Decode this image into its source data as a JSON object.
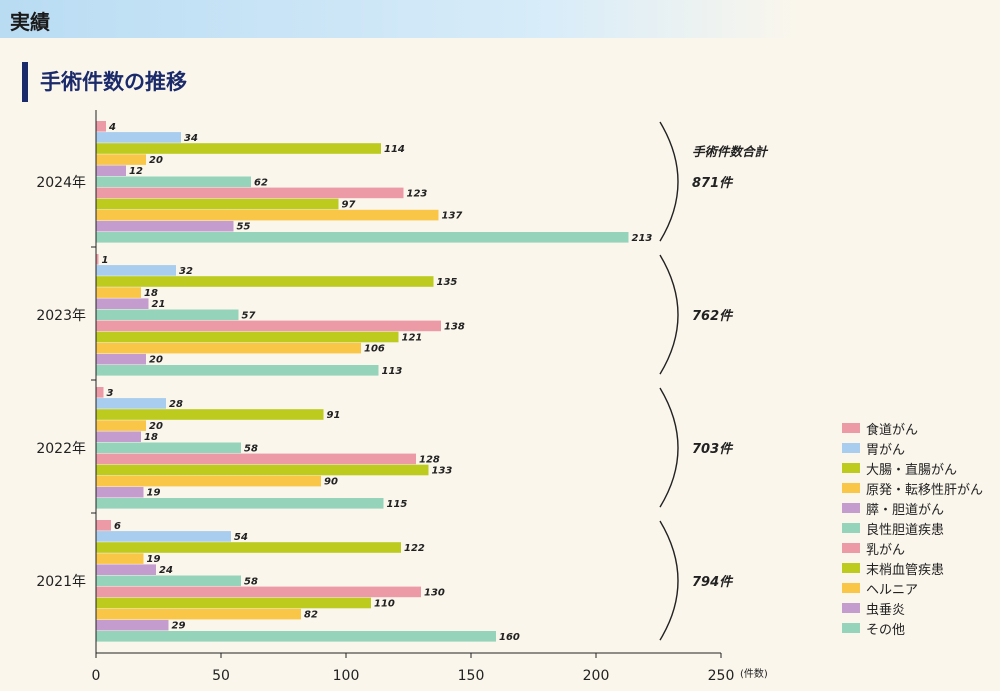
{
  "header": {
    "band_title": "実績",
    "section_title": "手術件数の推移"
  },
  "chart_data": {
    "type": "bar",
    "orientation": "horizontal",
    "title": "手術件数の推移",
    "x_unit_label": "(件数)",
    "xlim": [
      0,
      250
    ],
    "x_ticks": [
      0,
      50,
      100,
      150,
      200,
      250
    ],
    "grid": false,
    "legend_position": "right-bottom",
    "categories": [
      "食道がん",
      "胃がん",
      "大腸・直腸がん",
      "原発・転移性肝がん",
      "膵・胆道がん",
      "良性胆道疾患",
      "乳がん",
      "末梢血管疾患",
      "ヘルニア",
      "虫垂炎",
      "その他"
    ],
    "colors": [
      "#eb9aa6",
      "#a9cdee",
      "#bccb1e",
      "#f9c648",
      "#c49ccd",
      "#95d3ba",
      "#eb9aa6",
      "#bccb1e",
      "#f9c648",
      "#c49ccd",
      "#95d3ba"
    ],
    "years": [
      {
        "label": "2024年",
        "values": [
          4,
          34,
          114,
          20,
          12,
          62,
          123,
          97,
          137,
          55,
          213
        ],
        "total_label": "871件",
        "total_heading": "手術件数合計"
      },
      {
        "label": "2023年",
        "values": [
          1,
          32,
          135,
          18,
          21,
          57,
          138,
          121,
          106,
          20,
          113
        ],
        "total_label": "762件"
      },
      {
        "label": "2022年",
        "values": [
          3,
          28,
          91,
          20,
          18,
          58,
          128,
          133,
          90,
          19,
          115
        ],
        "total_label": "703件"
      },
      {
        "label": "2021年",
        "values": [
          6,
          54,
          122,
          19,
          24,
          58,
          130,
          110,
          82,
          29,
          160
        ],
        "total_label": "794件"
      }
    ]
  }
}
